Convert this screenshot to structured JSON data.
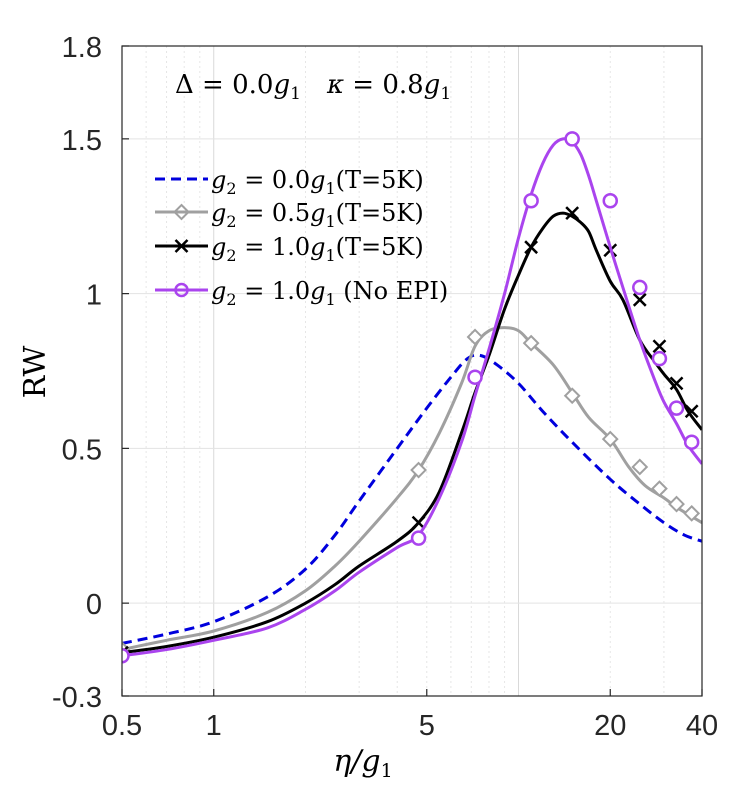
{
  "chart_data": {
    "type": "line",
    "xscale": "log",
    "xlim": [
      0.5,
      40
    ],
    "ylim": [
      -0.3,
      1.8
    ],
    "xticks": [
      0.5,
      1,
      5,
      20,
      40
    ],
    "xtick_labels": [
      "0.5",
      "1",
      "5",
      "20",
      "40"
    ],
    "yticks": [
      -0.3,
      0,
      0.5,
      1,
      1.5,
      1.8
    ],
    "ytick_labels": [
      "-0.3",
      "0",
      "0.5",
      "1",
      "1.5",
      "1.8"
    ],
    "xlabel": "η/g₁",
    "ylabel": "RW",
    "annotation": "Δ = 0.0g₁    κ = 0.8g₁",
    "legend_position": "top-left",
    "series": [
      {
        "name": "g₂ = 0.0g₁(T=5K)",
        "color": "#0000dd",
        "dash": true,
        "marker": "none",
        "x": [
          0.5,
          0.7,
          1.0,
          1.5,
          2.0,
          2.5,
          3.0,
          4.0,
          5.0,
          6.0,
          6.8,
          7.5,
          8.5,
          10,
          12,
          15,
          20,
          25,
          30,
          35,
          40
        ],
        "y": [
          -0.13,
          -0.1,
          -0.06,
          0.02,
          0.11,
          0.22,
          0.33,
          0.5,
          0.63,
          0.73,
          0.79,
          0.8,
          0.77,
          0.71,
          0.62,
          0.52,
          0.4,
          0.32,
          0.26,
          0.22,
          0.2
        ]
      },
      {
        "name": "g₂ = 0.5g₁(T=5K)",
        "color": "#a0a0a0",
        "dash": false,
        "marker": "diamond",
        "x": [
          0.5,
          0.7,
          1.0,
          1.5,
          2.0,
          2.5,
          3.0,
          4.0,
          4.7,
          5.5,
          6.5,
          7.2,
          8.0,
          9.0,
          10,
          11,
          13,
          15,
          17,
          20,
          23,
          26,
          30,
          33,
          37,
          40
        ],
        "y": [
          -0.15,
          -0.12,
          -0.09,
          -0.03,
          0.04,
          0.12,
          0.2,
          0.34,
          0.43,
          0.55,
          0.71,
          0.83,
          0.88,
          0.89,
          0.88,
          0.84,
          0.77,
          0.68,
          0.6,
          0.53,
          0.44,
          0.38,
          0.34,
          0.31,
          0.28,
          0.26
        ],
        "markers_x": [
          0.5,
          4.7,
          7.2,
          11,
          15,
          20,
          25,
          29,
          33,
          37
        ],
        "markers_y": [
          -0.15,
          0.43,
          0.86,
          0.84,
          0.67,
          0.53,
          0.44,
          0.37,
          0.32,
          0.29
        ]
      },
      {
        "name": "g₂ = 1.0g₁(T=5K)",
        "color": "#000000",
        "dash": false,
        "marker": "x",
        "x": [
          0.5,
          0.7,
          1.0,
          1.5,
          2.0,
          2.5,
          3.0,
          4.0,
          4.7,
          5.5,
          6.5,
          7.2,
          8.0,
          9.0,
          10,
          11,
          12,
          13,
          14,
          15,
          16,
          17,
          18,
          20,
          22,
          25,
          28,
          30,
          33,
          36,
          40
        ],
        "y": [
          -0.16,
          -0.14,
          -0.11,
          -0.06,
          0.0,
          0.06,
          0.12,
          0.2,
          0.26,
          0.36,
          0.55,
          0.68,
          0.8,
          0.95,
          1.06,
          1.15,
          1.21,
          1.25,
          1.26,
          1.25,
          1.23,
          1.2,
          1.14,
          1.04,
          0.98,
          0.85,
          0.78,
          0.74,
          0.69,
          0.62,
          0.56
        ],
        "markers_x": [
          0.5,
          4.7,
          11,
          15,
          20,
          25,
          29,
          33,
          37
        ],
        "markers_y": [
          -0.16,
          0.26,
          1.15,
          1.26,
          1.14,
          0.98,
          0.83,
          0.71,
          0.62
        ]
      },
      {
        "name": "g₂ = 1.0g₁ (No EPI)",
        "color": "#aa44ee",
        "dash": false,
        "marker": "circle",
        "x": [
          0.5,
          0.7,
          1.0,
          1.5,
          2.0,
          2.5,
          3.0,
          4.0,
          4.7,
          5.5,
          6.5,
          7.2,
          8.0,
          9.0,
          10,
          11,
          12,
          13,
          14,
          15,
          16,
          17,
          18,
          20,
          22,
          25,
          28,
          30,
          33,
          36,
          40
        ],
        "y": [
          -0.17,
          -0.15,
          -0.12,
          -0.08,
          -0.02,
          0.04,
          0.1,
          0.18,
          0.22,
          0.34,
          0.52,
          0.67,
          0.82,
          1.0,
          1.18,
          1.32,
          1.42,
          1.48,
          1.5,
          1.49,
          1.45,
          1.38,
          1.3,
          1.15,
          1.02,
          0.85,
          0.72,
          0.65,
          0.58,
          0.51,
          0.45
        ],
        "markers_x": [
          0.5,
          4.7,
          7.2,
          11,
          15,
          20,
          25,
          29,
          33,
          37
        ],
        "markers_y": [
          -0.17,
          0.21,
          0.73,
          1.3,
          1.5,
          1.3,
          1.02,
          0.79,
          0.63,
          0.52
        ]
      }
    ]
  }
}
